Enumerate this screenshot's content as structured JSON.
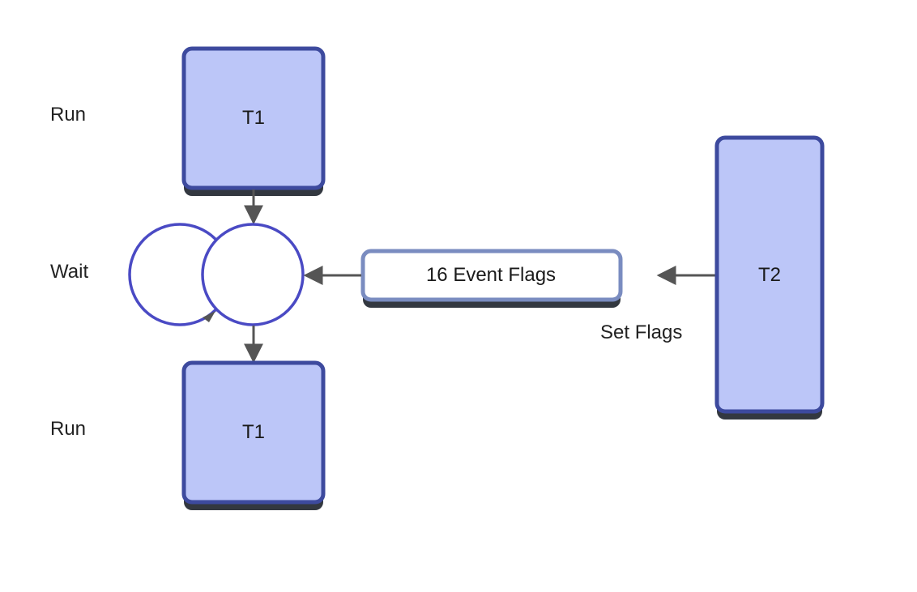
{
  "states": {
    "run_top": "Run",
    "wait": "Wait",
    "run_bottom": "Run"
  },
  "tasks": {
    "t1_top": "T1",
    "t1_bottom": "T1",
    "t2": "T2"
  },
  "event_flags": {
    "label": "16 Event Flags"
  },
  "set_flags": {
    "label": "Set Flags"
  },
  "colors": {
    "box_fill": "#bcc6f8",
    "box_border": "#3d4a9e",
    "box_shadow": "#333840",
    "circle_stroke": "#4a4ac4",
    "arrow": "#555555",
    "flags_border": "#7a8cc0"
  }
}
